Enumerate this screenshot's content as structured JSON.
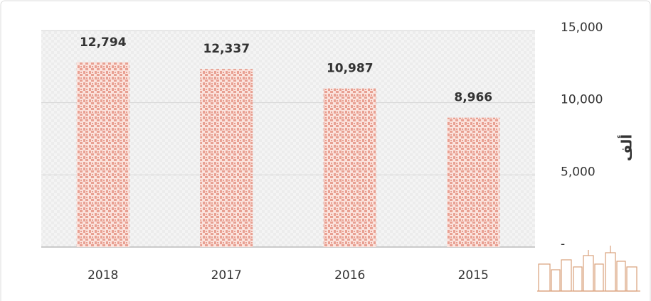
{
  "chart_data": {
    "type": "bar",
    "y_label": "ألف",
    "categories": [
      "2018",
      "2017",
      "2016",
      "2015"
    ],
    "values": [
      12794,
      12337,
      10987,
      8966
    ],
    "value_labels": [
      "12,794",
      "12,337",
      "10,987",
      "8,966"
    ],
    "color": "#e8a092",
    "ylim": [
      0,
      15000
    ],
    "yticks": [
      {
        "value": 0,
        "label": "-"
      },
      {
        "value": 5000,
        "label": "5,000"
      },
      {
        "value": 10000,
        "label": "10,000"
      },
      {
        "value": 15000,
        "label": "15,000"
      }
    ],
    "grid": true
  }
}
